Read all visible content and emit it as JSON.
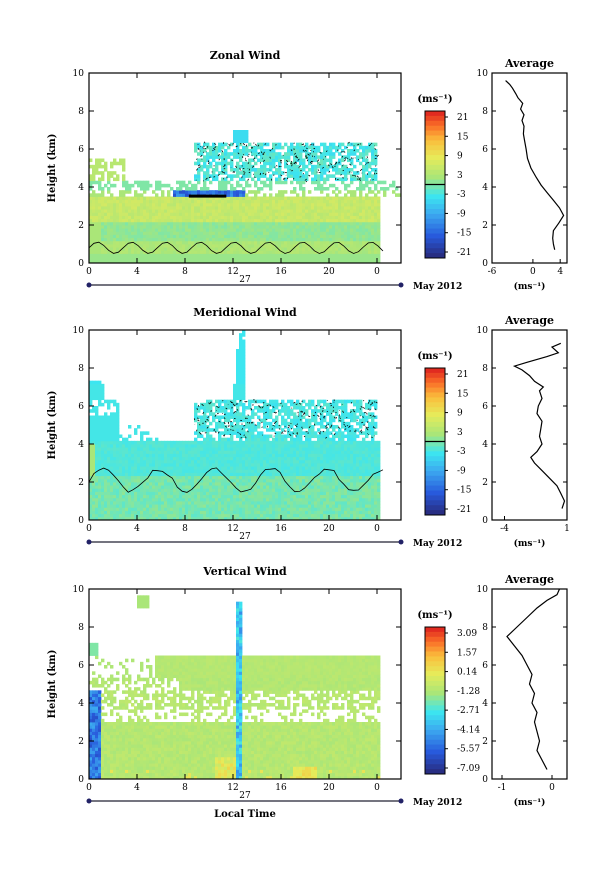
{
  "chart_data": [
    {
      "type": "heatmap",
      "title": "Zonal Wind",
      "ylabel": "Height (km)",
      "xlabel": "",
      "x_ticks": [
        "0",
        "4",
        "8",
        "12",
        "16",
        "20",
        "0"
      ],
      "y_ticks": [
        "0",
        "2",
        "4",
        "6",
        "8",
        "10"
      ],
      "date_label": "27",
      "month_label": "May 2012",
      "colorbar_unit": "(ms⁻¹)",
      "colorbar_ticks": [
        "21",
        "15",
        "9",
        "3",
        "-3",
        "-9",
        "-15",
        "-21"
      ],
      "xlim": [
        0,
        24
      ],
      "ylim": [
        0,
        10
      ],
      "profile": {
        "title": "Average",
        "xlabel": "(ms⁻¹)",
        "x_ticks": [
          "-6",
          "0",
          "4"
        ],
        "y_ticks": [
          "0",
          "2",
          "4",
          "6",
          "8",
          "10"
        ],
        "xlim": [
          -6,
          5
        ],
        "x": [
          3.2,
          3.0,
          2.9,
          3.0,
          3.8,
          4.5,
          3.9,
          3.0,
          2.1,
          1.2,
          0.5,
          -0.3,
          -0.8,
          -1.0,
          -1.2,
          -1.4,
          -1.3,
          -1.6,
          -1.3,
          -1.8,
          -1.5,
          -2.2,
          -2.5,
          -3.0,
          -3.4,
          -4.0
        ],
        "y": [
          0.7,
          1.0,
          1.3,
          1.7,
          2.1,
          2.5,
          2.9,
          3.3,
          3.7,
          4.1,
          4.5,
          5.0,
          5.5,
          6.0,
          6.4,
          6.8,
          7.2,
          7.5,
          7.8,
          8.1,
          8.4,
          8.7,
          8.9,
          9.2,
          9.4,
          9.6
        ]
      }
    },
    {
      "type": "heatmap",
      "title": "Meridional Wind",
      "ylabel": "Height (km)",
      "xlabel": "",
      "x_ticks": [
        "0",
        "4",
        "8",
        "12",
        "16",
        "20",
        "0"
      ],
      "y_ticks": [
        "0",
        "2",
        "4",
        "6",
        "8",
        "10"
      ],
      "date_label": "27",
      "month_label": "May 2012",
      "colorbar_unit": "(ms⁻¹)",
      "colorbar_ticks": [
        "21",
        "15",
        "9",
        "3",
        "-3",
        "-9",
        "-15",
        "-21"
      ],
      "xlim": [
        0,
        24
      ],
      "ylim": [
        0,
        10
      ],
      "profile": {
        "title": "Average",
        "xlabel": "(ms⁻¹)",
        "x_ticks": [
          "-4",
          "1"
        ],
        "y_ticks": [
          "0",
          "2",
          "4",
          "6",
          "8",
          "10"
        ],
        "xlim": [
          -5,
          1
        ],
        "x": [
          0.6,
          0.8,
          0.5,
          0.2,
          -0.4,
          -1.0,
          -1.6,
          -1.9,
          -1.4,
          -1.0,
          -1.2,
          -1.1,
          -1.0,
          -1.4,
          -1.3,
          -1.0,
          -1.2,
          -0.9,
          -1.6,
          -2.0,
          -2.6,
          -3.2,
          -2.2,
          -0.6,
          0.3,
          -0.2,
          0.5
        ],
        "y": [
          0.6,
          1.0,
          1.4,
          1.8,
          2.2,
          2.6,
          3.0,
          3.3,
          3.6,
          4.0,
          4.4,
          4.8,
          5.2,
          5.6,
          6.0,
          6.4,
          6.8,
          7.0,
          7.3,
          7.6,
          7.9,
          8.1,
          8.3,
          8.6,
          8.8,
          9.1,
          9.3
        ]
      }
    },
    {
      "type": "heatmap",
      "title": "Vertical Wind",
      "ylabel": "Height (km)",
      "xlabel": "Local Time",
      "x_ticks": [
        "0",
        "4",
        "8",
        "12",
        "16",
        "20",
        "0"
      ],
      "y_ticks": [
        "0",
        "2",
        "4",
        "6",
        "8",
        "10"
      ],
      "date_label": "27",
      "month_label": "May 2012",
      "colorbar_unit": "(ms⁻¹)",
      "colorbar_ticks": [
        "3.09",
        "1.57",
        "0.14",
        "-1.28",
        "-2.71",
        "-4.14",
        "-5.57",
        "-7.09"
      ],
      "xlim": [
        0,
        24
      ],
      "ylim": [
        0,
        10
      ],
      "profile": {
        "title": "Average",
        "xlabel": "(ms⁻¹)",
        "x_ticks": [
          "-1",
          "0"
        ],
        "y_ticks": [
          "0",
          "2",
          "4",
          "6",
          "8",
          "10"
        ],
        "xlim": [
          -1.2,
          0.3
        ],
        "x": [
          -0.1,
          -0.2,
          -0.3,
          -0.25,
          -0.3,
          -0.35,
          -0.3,
          -0.4,
          -0.35,
          -0.45,
          -0.4,
          -0.5,
          -0.6,
          -0.75,
          -0.9,
          -0.7,
          -0.5,
          -0.3,
          -0.1,
          0.1,
          0.15
        ],
        "y": [
          0.5,
          1.0,
          1.5,
          2.0,
          2.5,
          3.0,
          3.5,
          4.0,
          4.5,
          5.0,
          5.5,
          6.0,
          6.5,
          7.0,
          7.5,
          8.0,
          8.5,
          9.0,
          9.4,
          9.7,
          10.0
        ]
      }
    }
  ]
}
